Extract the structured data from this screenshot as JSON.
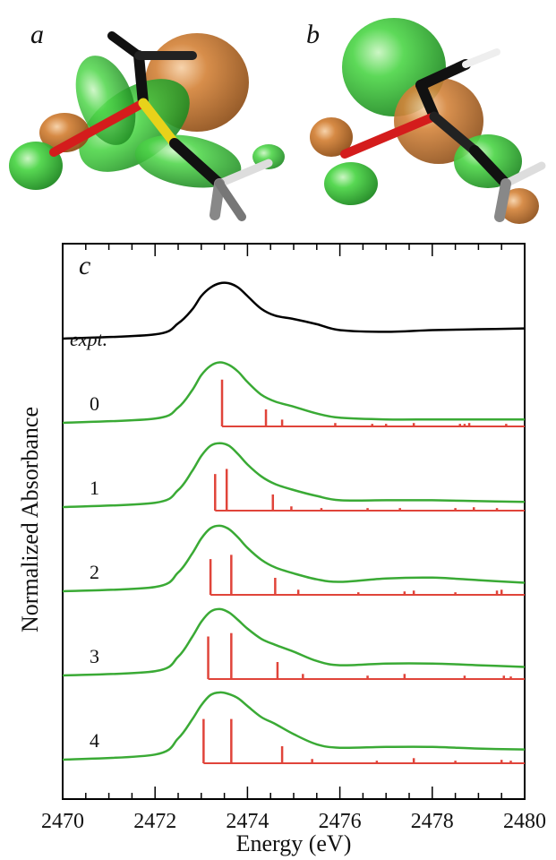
{
  "panels": {
    "a": "a",
    "b": "b",
    "c": "c"
  },
  "colors": {
    "expt": "#000000",
    "calc": "#3aaa35",
    "sticks": "#e0443a",
    "lobe_green": "#3fbf3a",
    "lobe_orange": "#c8742e"
  },
  "chart_data": {
    "type": "line",
    "xlabel": "Energy (eV)",
    "ylabel": "Normalized Absorbance",
    "xlim": [
      2470,
      2480
    ],
    "xticks": [
      "2470",
      "2472",
      "2474",
      "2476",
      "2478",
      "2480"
    ],
    "x_minor_step": 0.5,
    "grid": false,
    "expt_label": "expt.",
    "series": [
      {
        "name": "expt.",
        "x": [
          2470.0,
          2472.0,
          2472.5,
          2472.8,
          2473.0,
          2473.2,
          2473.4,
          2473.6,
          2473.8,
          2474.0,
          2474.3,
          2474.6,
          2475.0,
          2475.5,
          2476.0,
          2477.0,
          2478.0,
          2479.0,
          2480.0
        ],
        "y": [
          0.0,
          0.05,
          0.18,
          0.34,
          0.5,
          0.6,
          0.65,
          0.65,
          0.6,
          0.5,
          0.35,
          0.27,
          0.23,
          0.17,
          0.1,
          0.08,
          0.1,
          0.11,
          0.12
        ]
      },
      {
        "name": "0",
        "x": [
          2470.0,
          2472.0,
          2472.5,
          2472.8,
          2473.0,
          2473.2,
          2473.4,
          2473.6,
          2473.8,
          2474.0,
          2474.3,
          2474.6,
          2475.0,
          2475.5,
          2476.0,
          2477.0,
          2478.0,
          2479.0,
          2480.0
        ],
        "y": [
          0.0,
          0.05,
          0.18,
          0.38,
          0.56,
          0.67,
          0.71,
          0.68,
          0.6,
          0.48,
          0.33,
          0.25,
          0.19,
          0.11,
          0.06,
          0.04,
          0.04,
          0.04,
          0.04
        ],
        "sticks": [
          [
            2473.45,
            0.55
          ],
          [
            2474.4,
            0.2
          ],
          [
            2474.75,
            0.08
          ],
          [
            2475.9,
            0.04
          ],
          [
            2476.7,
            0.03
          ],
          [
            2477.0,
            0.03
          ],
          [
            2477.6,
            0.04
          ],
          [
            2478.6,
            0.03
          ],
          [
            2478.7,
            0.03
          ],
          [
            2478.8,
            0.04
          ],
          [
            2479.6,
            0.03
          ]
        ]
      },
      {
        "name": "1",
        "x": [
          2470.0,
          2472.0,
          2472.5,
          2472.8,
          2473.0,
          2473.2,
          2473.4,
          2473.6,
          2473.8,
          2474.0,
          2474.3,
          2474.6,
          2475.0,
          2475.5,
          2476.0,
          2477.0,
          2478.0,
          2479.0,
          2480.0
        ],
        "y": [
          0.0,
          0.05,
          0.2,
          0.42,
          0.6,
          0.72,
          0.75,
          0.72,
          0.62,
          0.5,
          0.36,
          0.27,
          0.2,
          0.13,
          0.08,
          0.08,
          0.08,
          0.07,
          0.06
        ],
        "sticks": [
          [
            2473.3,
            0.43
          ],
          [
            2473.55,
            0.49
          ],
          [
            2474.55,
            0.19
          ],
          [
            2474.95,
            0.05
          ],
          [
            2475.6,
            0.03
          ],
          [
            2476.6,
            0.03
          ],
          [
            2477.3,
            0.03
          ],
          [
            2478.5,
            0.03
          ],
          [
            2478.9,
            0.04
          ],
          [
            2479.4,
            0.03
          ]
        ]
      },
      {
        "name": "2",
        "x": [
          2470.0,
          2472.0,
          2472.5,
          2472.8,
          2473.0,
          2473.2,
          2473.4,
          2473.6,
          2473.8,
          2474.0,
          2474.3,
          2474.6,
          2475.0,
          2475.5,
          2476.0,
          2477.0,
          2478.0,
          2479.0,
          2480.0
        ],
        "y": [
          0.0,
          0.05,
          0.22,
          0.44,
          0.62,
          0.74,
          0.77,
          0.73,
          0.63,
          0.51,
          0.37,
          0.28,
          0.21,
          0.14,
          0.11,
          0.15,
          0.16,
          0.13,
          0.1
        ],
        "sticks": [
          [
            2473.2,
            0.42
          ],
          [
            2473.65,
            0.47
          ],
          [
            2474.6,
            0.2
          ],
          [
            2475.1,
            0.06
          ],
          [
            2476.4,
            0.03
          ],
          [
            2477.4,
            0.04
          ],
          [
            2477.6,
            0.05
          ],
          [
            2478.5,
            0.03
          ],
          [
            2479.4,
            0.05
          ],
          [
            2479.5,
            0.06
          ]
        ]
      },
      {
        "name": "3",
        "x": [
          2470.0,
          2472.0,
          2472.5,
          2472.8,
          2473.0,
          2473.2,
          2473.4,
          2473.6,
          2473.8,
          2474.0,
          2474.3,
          2474.6,
          2475.0,
          2475.5,
          2476.0,
          2477.0,
          2478.0,
          2479.0,
          2480.0
        ],
        "y": [
          0.0,
          0.05,
          0.22,
          0.45,
          0.63,
          0.75,
          0.78,
          0.74,
          0.65,
          0.55,
          0.43,
          0.36,
          0.28,
          0.17,
          0.12,
          0.14,
          0.14,
          0.12,
          0.1
        ],
        "sticks": [
          [
            2473.15,
            0.5
          ],
          [
            2473.65,
            0.54
          ],
          [
            2474.65,
            0.2
          ],
          [
            2475.2,
            0.06
          ],
          [
            2476.6,
            0.04
          ],
          [
            2477.4,
            0.06
          ],
          [
            2478.7,
            0.04
          ],
          [
            2479.55,
            0.04
          ],
          [
            2479.7,
            0.03
          ]
        ]
      },
      {
        "name": "4",
        "x": [
          2470.0,
          2472.0,
          2472.5,
          2472.8,
          2473.0,
          2473.2,
          2473.4,
          2473.6,
          2473.8,
          2474.0,
          2474.3,
          2474.6,
          2475.0,
          2475.5,
          2476.0,
          2477.0,
          2478.0,
          2479.0,
          2480.0
        ],
        "y": [
          0.0,
          0.06,
          0.25,
          0.47,
          0.64,
          0.76,
          0.79,
          0.77,
          0.72,
          0.63,
          0.5,
          0.42,
          0.3,
          0.18,
          0.14,
          0.15,
          0.15,
          0.13,
          0.12
        ],
        "sticks": [
          [
            2473.05,
            0.52
          ],
          [
            2473.65,
            0.52
          ],
          [
            2474.75,
            0.2
          ],
          [
            2475.4,
            0.05
          ],
          [
            2476.8,
            0.03
          ],
          [
            2477.6,
            0.06
          ],
          [
            2478.5,
            0.03
          ],
          [
            2479.5,
            0.04
          ],
          [
            2479.7,
            0.03
          ]
        ]
      }
    ]
  }
}
